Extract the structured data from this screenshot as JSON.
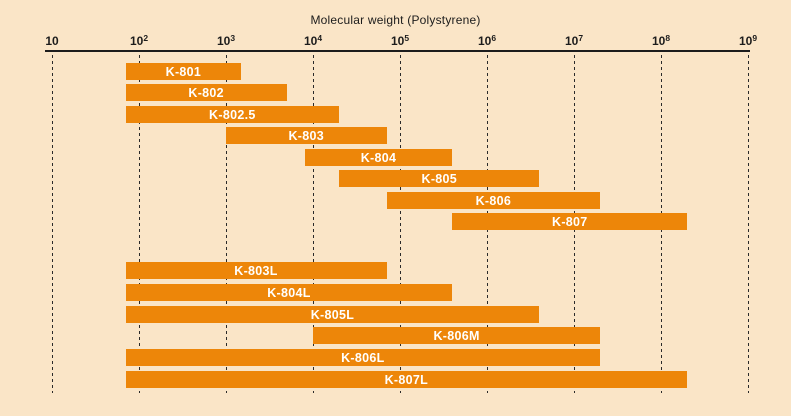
{
  "title": "Molecular weight (Polystyrene)",
  "chart_data": {
    "type": "bar",
    "subtype": "horizontal-log-range-bars",
    "title": "Molecular weight (Polystyrene)",
    "xlabel": "Molecular weight (Polystyrene)",
    "x_scale": "log10",
    "xlim": [
      10,
      1000000000
    ],
    "grid": "vertical-dashed-per-decade",
    "legend": "none",
    "x_ticks": [
      {
        "base": "10",
        "exp": "",
        "value": 10
      },
      {
        "base": "10",
        "exp": "2",
        "value": 100
      },
      {
        "base": "10",
        "exp": "3",
        "value": 1000
      },
      {
        "base": "10",
        "exp": "4",
        "value": 10000
      },
      {
        "base": "10",
        "exp": "5",
        "value": 100000
      },
      {
        "base": "10",
        "exp": "6",
        "value": 1000000
      },
      {
        "base": "10",
        "exp": "7",
        "value": 10000000
      },
      {
        "base": "10",
        "exp": "8",
        "value": 100000000
      },
      {
        "base": "10",
        "exp": "9",
        "value": 1000000000
      }
    ],
    "bars": [
      {
        "label": "K-801",
        "min": 70,
        "max": 1500,
        "group": 0
      },
      {
        "label": "K-802",
        "min": 70,
        "max": 5000,
        "group": 0
      },
      {
        "label": "K-802.5",
        "min": 70,
        "max": 20000,
        "group": 0
      },
      {
        "label": "K-803",
        "min": 1000,
        "max": 70000,
        "group": 0
      },
      {
        "label": "K-804",
        "min": 8000,
        "max": 400000,
        "group": 0
      },
      {
        "label": "K-805",
        "min": 20000,
        "max": 4000000,
        "group": 0
      },
      {
        "label": "K-806",
        "min": 70000,
        "max": 20000000,
        "group": 0
      },
      {
        "label": "K-807",
        "min": 400000,
        "max": 200000000,
        "group": 0
      },
      {
        "label": "K-803L",
        "min": 70,
        "max": 70000,
        "group": 1
      },
      {
        "label": "K-804L",
        "min": 70,
        "max": 400000,
        "group": 1
      },
      {
        "label": "K-805L",
        "min": 70,
        "max": 4000000,
        "group": 1
      },
      {
        "label": "K-806M",
        "min": 10000,
        "max": 20000000,
        "group": 1
      },
      {
        "label": "K-806L",
        "min": 70,
        "max": 20000000,
        "group": 1
      },
      {
        "label": "K-807L",
        "min": 70,
        "max": 200000000,
        "group": 1
      }
    ],
    "colors": {
      "background": "#FAE5C7",
      "bar": "#ED8609",
      "bar_label": "#FFFFFF",
      "axis": "#1C1C1C",
      "gridline": "#2A2A2A",
      "text": "#1C1C1C"
    }
  }
}
